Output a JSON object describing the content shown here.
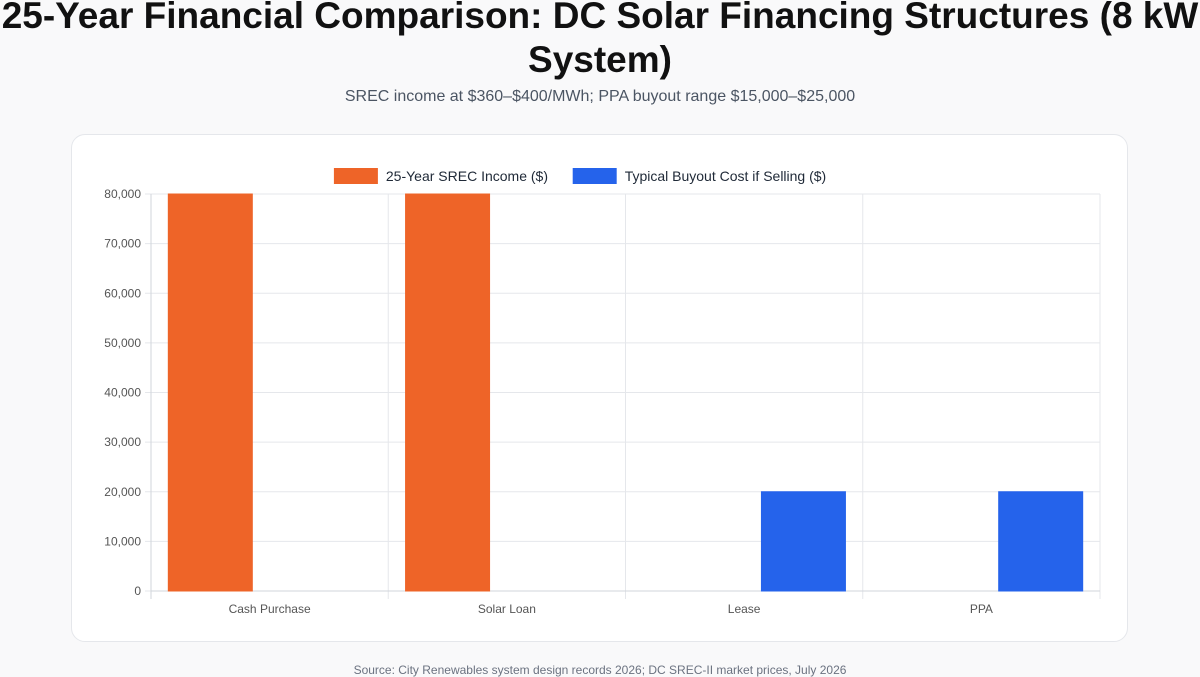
{
  "title": "25-Year Financial Comparison: DC Solar Financing Structures (8 kW System)",
  "subtitle": "SREC income at $360–$400/MWh; PPA buyout range $15,000–$25,000",
  "source": "Source: City Renewables system design records 2026; DC SREC-II market prices, July 2026",
  "colors": {
    "srec": "#ee6428",
    "buyout": "#2563eb",
    "grid": "#e5e7eb",
    "axis": "#d1d5db"
  },
  "chart_data": {
    "type": "bar",
    "categories": [
      "Cash Purchase",
      "Solar Loan",
      "Lease",
      "PPA"
    ],
    "series": [
      {
        "name": "25-Year SREC Income ($)",
        "color": "#ee6428",
        "values": [
          80000,
          80000,
          0,
          0
        ]
      },
      {
        "name": "Typical Buyout Cost if Selling ($)",
        "color": "#2563eb",
        "values": [
          0,
          0,
          20000,
          20000
        ]
      }
    ],
    "ylim": [
      0,
      80000
    ],
    "yticks": [
      "0",
      "10,000",
      "20,000",
      "30,000",
      "40,000",
      "50,000",
      "60,000",
      "70,000",
      "80,000"
    ],
    "ystep": 10000,
    "legend_position": "top",
    "grid": true
  }
}
